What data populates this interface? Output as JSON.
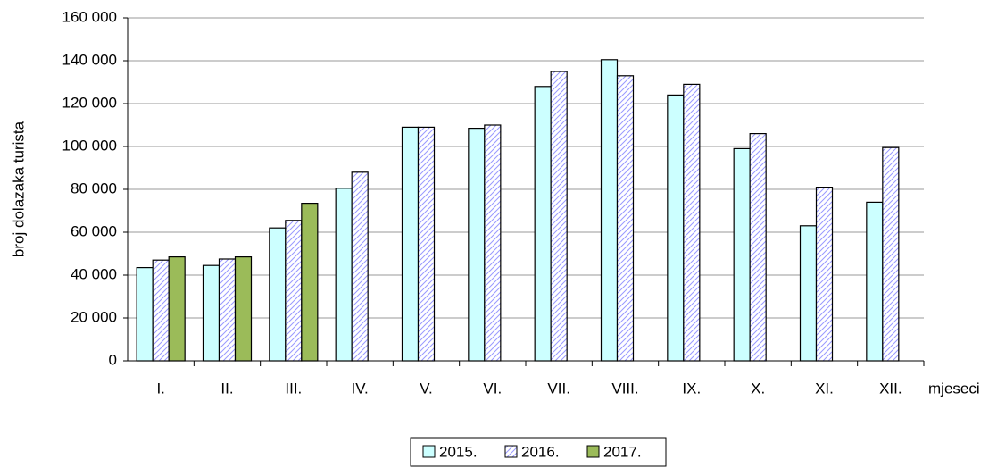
{
  "chart_data": {
    "type": "bar",
    "categories": [
      "I.",
      "II.",
      "III.",
      "IV.",
      "V.",
      "VI.",
      "VII.",
      "VIII.",
      "IX.",
      "X.",
      "XI.",
      "XII."
    ],
    "series": [
      {
        "name": "2015.",
        "color": "#ccffff",
        "values": [
          43500,
          44500,
          62000,
          80500,
          109000,
          108500,
          128000,
          140500,
          124000,
          99000,
          63000,
          74000
        ]
      },
      {
        "name": "2016.",
        "color": "#9999ff",
        "values": [
          47000,
          47500,
          65500,
          88000,
          109000,
          110000,
          135000,
          133000,
          129000,
          106000,
          81000,
          99500
        ]
      },
      {
        "name": "2017.",
        "color": "#9bbb59",
        "values": [
          48500,
          48500,
          73500,
          null,
          null,
          null,
          null,
          null,
          null,
          null,
          null,
          null
        ]
      }
    ],
    "y_label": "broj dolazaka turista",
    "x_label": "mjeseci",
    "ylim": [
      0,
      160000
    ],
    "yticks": [
      0,
      {
        "value": 20000,
        "label": "20 000"
      },
      {
        "value": 40000,
        "label": "40 000"
      },
      {
        "value": 60000,
        "label": "60 000"
      },
      {
        "value": 80000,
        "label": "80 000"
      },
      {
        "value": 100000,
        "label": "100 000"
      },
      {
        "value": 120000,
        "label": "120 000"
      },
      {
        "value": 140000,
        "label": "140 000"
      },
      {
        "value": 160000,
        "label": "160 000"
      }
    ],
    "grid": true,
    "legend": "bottom"
  }
}
